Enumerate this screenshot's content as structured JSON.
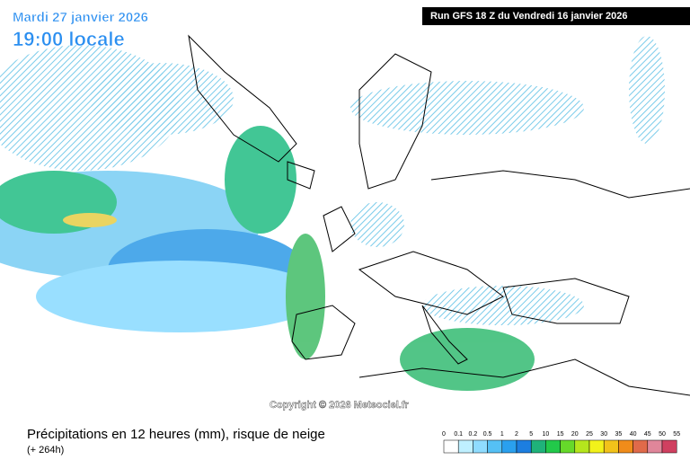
{
  "header": {
    "date": "Mardi 27 janvier 2026",
    "time": "19:00 locale",
    "run": "Run GFS 18 Z du Vendredi 16 janvier 2026"
  },
  "copyright": "Copyright © 2026 Meteociel.fr",
  "footer": {
    "title": "Précipitations en 12 heures (mm), risque de neige",
    "lead": "(+ 264h)"
  },
  "legend": {
    "values": [
      0,
      0.1,
      0.2,
      0.5,
      1,
      2,
      5,
      10,
      15,
      20,
      25,
      30,
      35,
      40,
      45,
      50,
      55
    ],
    "colors": [
      "#ffffff",
      "#bff0ff",
      "#8fdcff",
      "#55c0f5",
      "#2aa0ee",
      "#1c7ee0",
      "#1fb27a",
      "#22c94a",
      "#66d92a",
      "#b5e61d",
      "#f2f21a",
      "#f2c21a",
      "#f08c1a",
      "#e06a4a",
      "#e0869a",
      "#d04060"
    ]
  }
}
